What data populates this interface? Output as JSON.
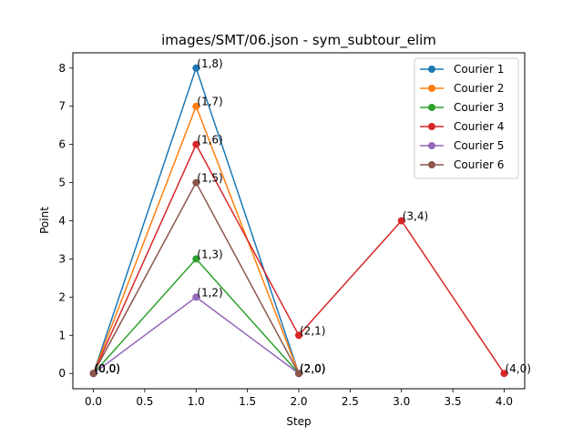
{
  "chart_data": {
    "type": "line",
    "title": "images/SMT/06.json - sym_subtour_elim",
    "xlabel": "Step",
    "ylabel": "Point",
    "xlim": [
      -0.2,
      4.2
    ],
    "ylim": [
      -0.4,
      8.4
    ],
    "xticks": [
      0.0,
      0.5,
      1.0,
      1.5,
      2.0,
      2.5,
      3.0,
      3.5,
      4.0
    ],
    "xtick_labels": [
      "0.0",
      "0.5",
      "1.0",
      "1.5",
      "2.0",
      "2.5",
      "3.0",
      "3.5",
      "4.0"
    ],
    "yticks": [
      0,
      1,
      2,
      3,
      4,
      5,
      6,
      7,
      8
    ],
    "ytick_labels": [
      "0",
      "1",
      "2",
      "3",
      "4",
      "5",
      "6",
      "7",
      "8"
    ],
    "grid": false,
    "legend_position": "top-right",
    "marker": "circle",
    "series": [
      {
        "name": "Courier 1",
        "color": "#1f77b4",
        "x": [
          0,
          1,
          2
        ],
        "y": [
          0,
          8,
          0
        ],
        "labels": [
          "(0,0)",
          "(1,8)",
          "(2,0)"
        ]
      },
      {
        "name": "Courier 2",
        "color": "#ff7f0e",
        "x": [
          0,
          1,
          2
        ],
        "y": [
          0,
          7,
          0
        ],
        "labels": [
          "(0,0)",
          "(1,7)",
          "(2,0)"
        ]
      },
      {
        "name": "Courier 3",
        "color": "#2ca02c",
        "x": [
          0,
          1,
          2
        ],
        "y": [
          0,
          3,
          0
        ],
        "labels": [
          "(0,0)",
          "(1,3)",
          "(2,0)"
        ]
      },
      {
        "name": "Courier 4",
        "color": "#d62728",
        "x": [
          0,
          1,
          2,
          3,
          4
        ],
        "y": [
          0,
          6,
          1,
          4,
          0
        ],
        "labels": [
          "(0,0)",
          "(1,6)",
          "(2,1)",
          "(3,4)",
          "(4,0)"
        ]
      },
      {
        "name": "Courier 5",
        "color": "#9467bd",
        "x": [
          0,
          1,
          2
        ],
        "y": [
          0,
          2,
          0
        ],
        "labels": [
          "(0,0)",
          "(1,2)",
          "(2,0)"
        ]
      },
      {
        "name": "Courier 6",
        "color": "#8c564b",
        "x": [
          0,
          1,
          2
        ],
        "y": [
          0,
          5,
          0
        ],
        "labels": [
          "(0,0)",
          "(1,5)",
          "(2,0)"
        ]
      }
    ]
  }
}
